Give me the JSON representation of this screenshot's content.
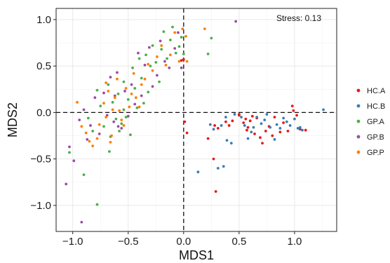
{
  "chart_data": {
    "type": "scatter",
    "xlabel": "MDS1",
    "ylabel": "MDS2",
    "xlim": [
      -1.15,
      1.38
    ],
    "ylim": [
      -1.28,
      1.12
    ],
    "x_ticks": [
      -1.0,
      -0.5,
      0.0,
      0.5,
      1.0
    ],
    "x_tick_labels": [
      "−1.0",
      "−0.5",
      "0.0",
      "0.5",
      "1.0"
    ],
    "y_ticks": [
      -1.0,
      -0.5,
      0.0,
      0.5,
      1.0
    ],
    "y_tick_labels": [
      "−1.0",
      "−0.5",
      "0.0",
      "0.5",
      "1.0"
    ],
    "grid": true,
    "reference_lines": {
      "x": 0,
      "y": 0,
      "style": "dashed"
    },
    "annotation": "Stress: 0.13",
    "legend_position": "right",
    "series": [
      {
        "name": "HC.A",
        "color": "#e41a1c",
        "points": [
          [
            0.0,
            0.57
          ],
          [
            -0.02,
            0.56
          ],
          [
            0.03,
            -0.22
          ],
          [
            0.01,
            -0.1
          ],
          [
            0.22,
            -0.28
          ],
          [
            0.28,
            -0.14
          ],
          [
            0.31,
            -0.17
          ],
          [
            0.38,
            -0.1
          ],
          [
            0.41,
            -0.14
          ],
          [
            0.44,
            -0.09
          ],
          [
            0.5,
            -0.03
          ],
          [
            0.54,
            -0.11
          ],
          [
            0.57,
            -0.19
          ],
          [
            0.58,
            -0.16
          ],
          [
            0.6,
            -0.09
          ],
          [
            0.62,
            -0.04
          ],
          [
            0.64,
            -0.23
          ],
          [
            0.66,
            -0.06
          ],
          [
            0.69,
            -0.27
          ],
          [
            0.71,
            -0.33
          ],
          [
            0.74,
            -0.2
          ],
          [
            0.77,
            -0.15
          ],
          [
            0.8,
            -0.25
          ],
          [
            0.82,
            -0.05
          ],
          [
            0.87,
            -0.21
          ],
          [
            0.9,
            -0.11
          ],
          [
            0.94,
            -0.2
          ],
          [
            0.98,
            0.07
          ],
          [
            0.99,
            0.02
          ],
          [
            1.02,
            -0.03
          ],
          [
            1.05,
            -0.18
          ],
          [
            1.1,
            -0.19
          ],
          [
            0.5,
            -0.02
          ],
          [
            0.56,
            -0.07
          ],
          [
            0.27,
            -0.5
          ],
          [
            0.29,
            -0.85
          ]
        ]
      },
      {
        "name": "HC.B",
        "color": "#377eb8",
        "points": [
          [
            0.24,
            -0.13
          ],
          [
            0.27,
            -0.18
          ],
          [
            0.34,
            -0.14
          ],
          [
            0.38,
            -0.05
          ],
          [
            0.39,
            -0.3
          ],
          [
            0.43,
            -0.33
          ],
          [
            0.46,
            -0.02
          ],
          [
            0.52,
            -0.05
          ],
          [
            0.55,
            -0.14
          ],
          [
            0.58,
            -0.28
          ],
          [
            0.61,
            -0.21
          ],
          [
            0.63,
            -0.16
          ],
          [
            0.66,
            -0.05
          ],
          [
            0.7,
            -0.12
          ],
          [
            0.73,
            -0.08
          ],
          [
            0.75,
            -0.02
          ],
          [
            0.78,
            -0.16
          ],
          [
            0.82,
            -0.29
          ],
          [
            0.84,
            -0.13
          ],
          [
            0.87,
            -0.17
          ],
          [
            0.9,
            -0.06
          ],
          [
            0.93,
            -0.1
          ],
          [
            0.96,
            -0.14
          ],
          [
            1.0,
            -0.07
          ],
          [
            1.03,
            -0.17
          ],
          [
            1.05,
            -0.16
          ],
          [
            1.07,
            -0.19
          ],
          [
            1.26,
            0.03
          ],
          [
            0.36,
            -0.58
          ],
          [
            0.31,
            -0.6
          ],
          [
            0.13,
            -0.64
          ]
        ]
      },
      {
        "name": "GP.A",
        "color": "#4daf4a",
        "points": [
          [
            -1.03,
            -0.43
          ],
          [
            -0.9,
            -0.67
          ],
          [
            -0.78,
            -0.99
          ],
          [
            -0.86,
            -0.06
          ],
          [
            -0.82,
            -0.2
          ],
          [
            -0.78,
            0.24
          ],
          [
            -0.75,
            0.07
          ],
          [
            -0.72,
            -0.15
          ],
          [
            -0.68,
            0.3
          ],
          [
            -0.64,
            0.11
          ],
          [
            -0.61,
            -0.07
          ],
          [
            -0.59,
            0.2
          ],
          [
            -0.56,
            -0.12
          ],
          [
            -0.54,
            0.33
          ],
          [
            -0.52,
            -0.05
          ],
          [
            -0.5,
            0.14
          ],
          [
            -0.48,
            -0.24
          ],
          [
            -0.46,
            0.48
          ],
          [
            -0.44,
            0.26
          ],
          [
            -0.42,
            0.05
          ],
          [
            -0.4,
            0.58
          ],
          [
            -0.38,
            0.37
          ],
          [
            -0.36,
            0.1
          ],
          [
            -0.34,
            0.62
          ],
          [
            -0.32,
            0.22
          ],
          [
            -0.3,
            0.5
          ],
          [
            -0.28,
            0.72
          ],
          [
            -0.25,
            0.54
          ],
          [
            -0.22,
            0.33
          ],
          [
            -0.2,
            0.68
          ],
          [
            -0.18,
            0.87
          ],
          [
            -0.15,
            0.58
          ],
          [
            -0.12,
            0.78
          ],
          [
            -0.1,
            0.92
          ],
          [
            -0.07,
            0.64
          ],
          [
            -0.04,
            0.71
          ],
          [
            -0.02,
            0.81
          ],
          [
            0.0,
            0.63
          ],
          [
            0.25,
            0.8
          ],
          [
            0.22,
            0.63
          ],
          [
            -0.66,
            -0.26
          ],
          [
            -0.67,
            -0.42
          ],
          [
            -0.58,
            -0.2
          ],
          [
            -0.54,
            0.03
          ]
        ]
      },
      {
        "name": "GP.B",
        "color": "#984ea3",
        "points": [
          [
            -1.06,
            -0.77
          ],
          [
            -1.03,
            -0.37
          ],
          [
            -0.99,
            -0.52
          ],
          [
            -0.94,
            -0.08
          ],
          [
            -0.92,
            -1.18
          ],
          [
            -0.9,
            0.03
          ],
          [
            -0.87,
            -0.29
          ],
          [
            -0.84,
            -0.14
          ],
          [
            -0.8,
            0.16
          ],
          [
            -0.76,
            -0.23
          ],
          [
            -0.72,
            0.21
          ],
          [
            -0.69,
            -0.03
          ],
          [
            -0.66,
            0.38
          ],
          [
            -0.63,
            -0.1
          ],
          [
            -0.6,
            0.43
          ],
          [
            -0.56,
            -0.17
          ],
          [
            -0.53,
            0.23
          ],
          [
            -0.5,
            -0.04
          ],
          [
            -0.47,
            0.3
          ],
          [
            -0.44,
            0.09
          ],
          [
            -0.41,
            0.64
          ],
          [
            -0.38,
            0.18
          ],
          [
            -0.35,
            0.51
          ],
          [
            -0.31,
            0.7
          ],
          [
            -0.28,
            0.28
          ],
          [
            -0.24,
            0.4
          ],
          [
            -0.21,
            0.77
          ],
          [
            -0.17,
            0.55
          ],
          [
            -0.13,
            0.48
          ],
          [
            -0.08,
            0.69
          ],
          [
            -0.05,
            0.86
          ],
          [
            -0.02,
            0.48
          ],
          [
            0.47,
            0.98
          ],
          [
            -0.62,
            0.18
          ],
          [
            -0.59,
            -0.15
          ]
        ]
      },
      {
        "name": "GP.P",
        "color": "#ff7f00",
        "points": [
          [
            -0.96,
            0.11
          ],
          [
            -0.92,
            -0.15
          ],
          [
            -0.88,
            -0.22
          ],
          [
            -0.85,
            -0.31
          ],
          [
            -0.82,
            -0.36
          ],
          [
            -0.78,
            -0.28
          ],
          [
            -0.76,
            -0.13
          ],
          [
            -0.72,
            0.1
          ],
          [
            -0.7,
            -0.05
          ],
          [
            -0.68,
            0.23
          ],
          [
            -0.66,
            -0.32
          ],
          [
            -0.64,
            0.03
          ],
          [
            -0.62,
            0.16
          ],
          [
            -0.6,
            0.36
          ],
          [
            -0.58,
            0.02
          ],
          [
            -0.56,
            -0.08
          ],
          [
            -0.54,
            -0.14
          ],
          [
            -0.52,
            0.26
          ],
          [
            -0.49,
            0.06
          ],
          [
            -0.47,
            0.2
          ],
          [
            -0.45,
            0.42
          ],
          [
            -0.43,
            0.16
          ],
          [
            -0.4,
            0.06
          ],
          [
            -0.38,
            0.3
          ],
          [
            -0.35,
            0.36
          ],
          [
            -0.32,
            0.52
          ],
          [
            -0.28,
            0.45
          ],
          [
            -0.24,
            0.6
          ],
          [
            -0.2,
            0.72
          ],
          [
            -0.16,
            0.51
          ],
          [
            -0.12,
            0.62
          ],
          [
            -0.08,
            0.86
          ],
          [
            -0.04,
            0.55
          ],
          [
            -0.01,
            0.9
          ],
          [
            0.02,
            0.82
          ],
          [
            0.19,
            0.9
          ],
          [
            0.03,
            0.55
          ],
          [
            -0.7,
            0.32
          ],
          [
            -0.65,
            -0.25
          ]
        ]
      }
    ]
  }
}
